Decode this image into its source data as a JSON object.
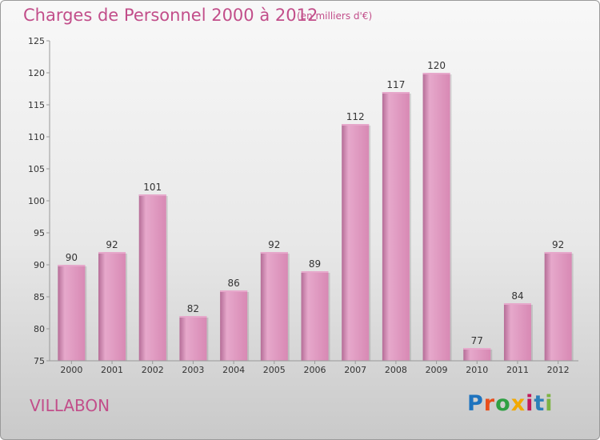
{
  "header": {
    "title": "Charges de Personnel 2000 à 2012",
    "subtitle": "(en milliers d'€)"
  },
  "footer": {
    "town": "VILLABON",
    "brand": "Proxiti",
    "brand_colors": [
      "#1e73be",
      "#e94e1b",
      "#2ea043",
      "#f2a900",
      "#c2185b",
      "#2c7fb8",
      "#7cb342"
    ]
  },
  "chart_data": {
    "type": "bar",
    "categories": [
      "2000",
      "2001",
      "2002",
      "2003",
      "2004",
      "2005",
      "2006",
      "2007",
      "2008",
      "2009",
      "2010",
      "2011",
      "2012"
    ],
    "values": [
      90,
      92,
      101,
      82,
      86,
      92,
      89,
      112,
      117,
      120,
      77,
      84,
      92
    ],
    "ylim": [
      75,
      125
    ],
    "yticks": [
      75,
      80,
      85,
      90,
      95,
      100,
      105,
      110,
      115,
      120,
      125
    ],
    "grid": false,
    "colors": {
      "bar": "#d889b4",
      "bar_light": "#e6a8cb",
      "bar_dark": "#b56d97",
      "axis": "#999999",
      "text": "#333333"
    }
  }
}
